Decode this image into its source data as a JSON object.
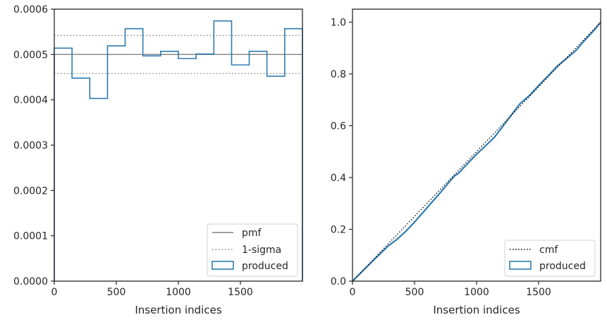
{
  "chart_data": [
    {
      "type": "line",
      "xlabel": "Insertion indices",
      "ylabel": "",
      "xlim": [
        0,
        2000
      ],
      "ylim": [
        0,
        0.0006
      ],
      "x_ticks": [
        0,
        500,
        1000,
        1500
      ],
      "x_tick_labels": [
        "0",
        "500",
        "1000",
        "1500"
      ],
      "y_ticks": [
        0,
        0.0001,
        0.0002,
        0.0003,
        0.0004,
        0.0005,
        0.0006
      ],
      "y_tick_labels": [
        "0.0000",
        "0.0001",
        "0.0002",
        "0.0003",
        "0.0004",
        "0.0005",
        "0.0006"
      ],
      "grid": false,
      "legend_position": "bottom-right",
      "legend": [
        "pmf",
        "1-sigma",
        "produced"
      ],
      "pmf": 0.0005,
      "sigma_band": [
        0.000458,
        0.000542
      ],
      "histogram": {
        "name": "produced",
        "bin_edges": [
          0,
          143,
          286,
          429,
          571,
          714,
          857,
          1000,
          1143,
          1286,
          1429,
          1571,
          1714,
          1857,
          2000
        ],
        "values": [
          0.000514,
          0.000448,
          0.000403,
          0.000519,
          0.000557,
          0.000497,
          0.000507,
          0.000491,
          0.000501,
          0.000574,
          0.000477,
          0.000507,
          0.000452,
          0.000557
        ]
      },
      "colors": {
        "produced": "#2e7cb0",
        "pmf": "#808080",
        "sigma": "#808080"
      }
    },
    {
      "type": "line",
      "xlabel": "Insertion indices",
      "ylabel": "",
      "xlim": [
        0,
        2000
      ],
      "ylim": [
        0,
        1.05
      ],
      "x_ticks": [
        0,
        500,
        1000,
        1500
      ],
      "x_tick_labels": [
        "0",
        "500",
        "1000",
        "1500"
      ],
      "y_ticks": [
        0,
        0.2,
        0.4,
        0.6,
        0.8,
        1.0
      ],
      "y_tick_labels": [
        "0.0",
        "0.2",
        "0.4",
        "0.6",
        "0.8",
        "1.0"
      ],
      "grid": false,
      "legend_position": "bottom-right",
      "legend": [
        "cmf",
        "produced"
      ],
      "cmf": {
        "name": "cmf",
        "x": [
          0,
          2000
        ],
        "y": [
          0,
          1.0
        ]
      },
      "produced_cdf": {
        "name": "produced",
        "x": [
          0,
          100,
          200,
          286,
          350,
          429,
          500,
          571,
          650,
          714,
          780,
          820,
          857,
          900,
          1000,
          1100,
          1143,
          1200,
          1286,
          1350,
          1429,
          1500,
          1571,
          1650,
          1714,
          1800,
          1857,
          1950,
          2000
        ],
        "y": [
          0,
          0.048,
          0.095,
          0.135,
          0.158,
          0.192,
          0.228,
          0.267,
          0.31,
          0.345,
          0.383,
          0.405,
          0.418,
          0.44,
          0.49,
          0.535,
          0.555,
          0.59,
          0.645,
          0.685,
          0.718,
          0.755,
          0.79,
          0.83,
          0.855,
          0.89,
          0.922,
          0.97,
          1.0
        ]
      },
      "colors": {
        "produced": "#2e7cb0",
        "cmf": "#000000"
      }
    }
  ]
}
